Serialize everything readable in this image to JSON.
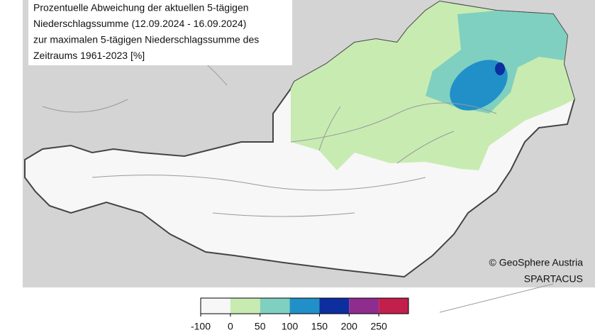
{
  "title_lines": [
    "Prozentuelle Abweichung der aktuellen 5-tägigen",
    "Niederschlagssumme (12.09.2024 - 16.09.2024)",
    "zur maximalen 5-tägigen Niederschlagssumme des",
    "Zeitraums 1961-2023 [%]"
  ],
  "copyright": "© GeoSphere Austria",
  "source": "SPARTACUS",
  "legend": {
    "ticks": [
      -100,
      0,
      50,
      100,
      150,
      200,
      250
    ],
    "colors": [
      "#f7f7f7",
      "#c8ebb2",
      "#7fd0c0",
      "#2190c8",
      "#0c2e9e",
      "#8f2d8f",
      "#c21f4d"
    ]
  }
}
